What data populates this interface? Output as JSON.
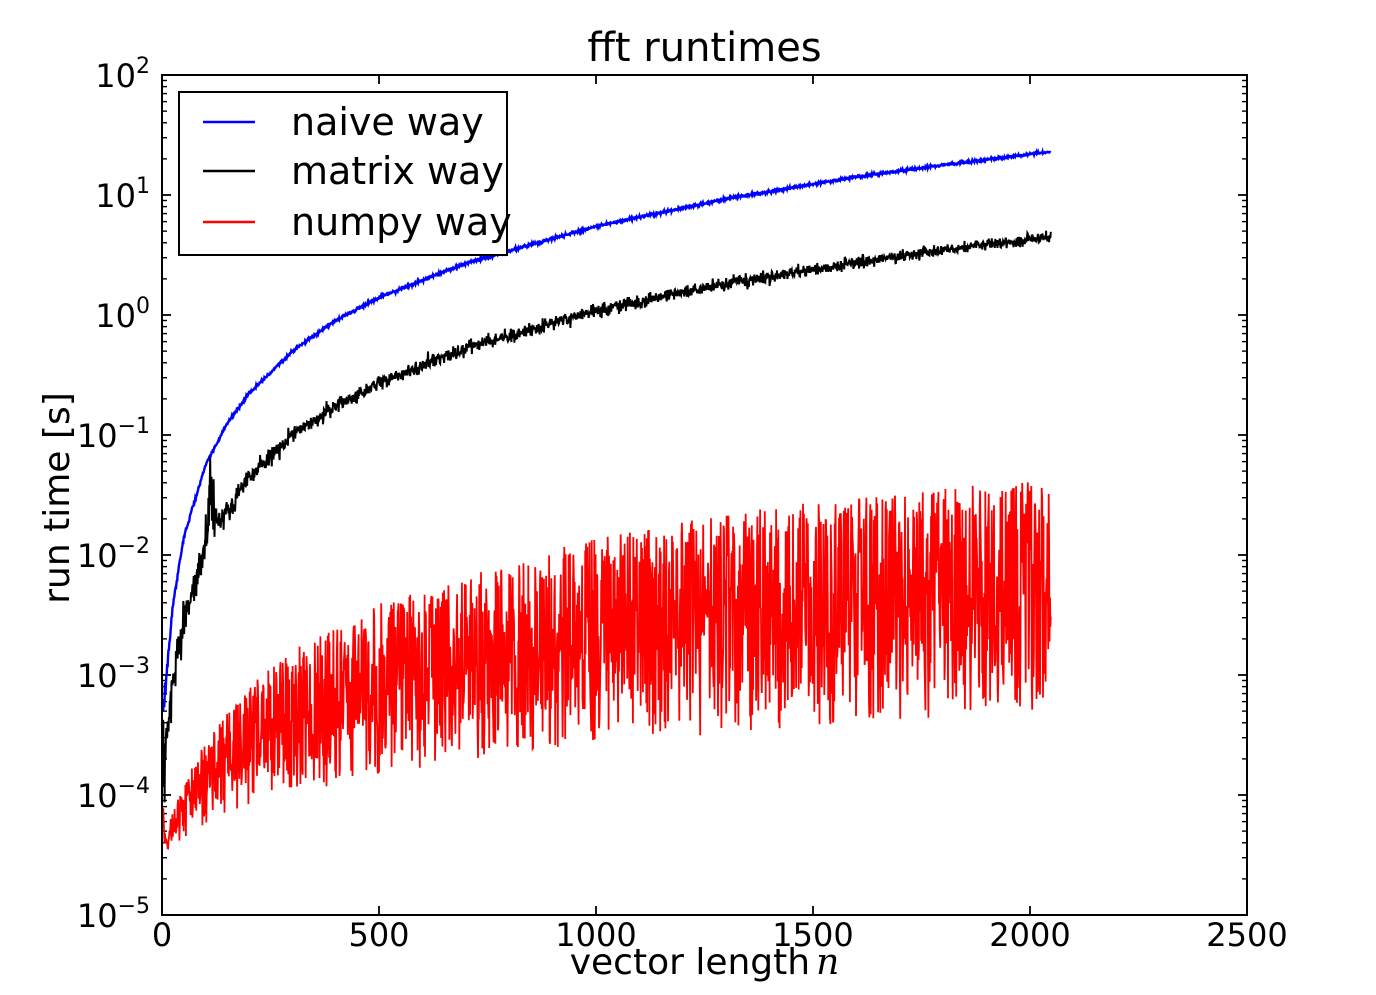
{
  "figure": {
    "title": "fft runtimes",
    "xlabel_prefix": "vector length",
    "xlabel_var": "n",
    "ylabel": "run time [s]"
  },
  "legend": {
    "position": "upper left",
    "entries": [
      {
        "label": "naive way",
        "color": "#0000ff"
      },
      {
        "label": "matrix way",
        "color": "#000000"
      },
      {
        "label": "numpy way",
        "color": "#ff0000"
      }
    ]
  },
  "chart_data": {
    "type": "line",
    "title": "fft runtimes",
    "xlabel": "vector length n",
    "ylabel": "run time [s]",
    "x_axis": {
      "scale": "linear",
      "min": 0,
      "max": 2500,
      "ticks": [
        0,
        500,
        1000,
        1500,
        2000,
        2500
      ]
    },
    "y_axis": {
      "scale": "log",
      "min_exp": -5,
      "max_exp": 2,
      "tick_exponents": [
        2,
        1,
        0,
        -1,
        -2,
        -3,
        -4,
        -5
      ],
      "minor_mantissas": [
        2,
        3,
        4,
        5,
        6,
        7,
        8,
        9
      ]
    },
    "grid": false,
    "n_start": 2,
    "n_end": 2048,
    "random_seed": 12,
    "series": [
      {
        "name": "naive way",
        "color": "#0000ff",
        "line_width": 2.4,
        "kind": "noisy_line",
        "anchors_n_seconds": [
          [
            2,
            0.00042
          ],
          [
            10,
            0.00095
          ],
          [
            25,
            0.0038
          ],
          [
            50,
            0.014
          ],
          [
            100,
            0.056
          ],
          [
            150,
            0.125
          ],
          [
            200,
            0.22
          ],
          [
            300,
            0.5
          ],
          [
            400,
            0.9
          ],
          [
            500,
            1.4
          ],
          [
            700,
            2.7
          ],
          [
            1000,
            5.5
          ],
          [
            1300,
            9.3
          ],
          [
            1600,
            14.2
          ],
          [
            1800,
            17.8
          ],
          [
            2048,
            23.0
          ]
        ],
        "noise_log10_by_n": [
          [
            2,
            0.05
          ],
          [
            20,
            0.012
          ],
          [
            100,
            0.006
          ],
          [
            2048,
            0.005
          ]
        ],
        "spike_regions": []
      },
      {
        "name": "matrix way",
        "color": "#000000",
        "line_width": 2.0,
        "kind": "noisy_line",
        "anchors_n_seconds": [
          [
            2,
            0.00023
          ],
          [
            6,
            0.00026
          ],
          [
            15,
            0.00045
          ],
          [
            25,
            0.0009
          ],
          [
            50,
            0.0029
          ],
          [
            100,
            0.011
          ],
          [
            150,
            0.024
          ],
          [
            200,
            0.044
          ],
          [
            300,
            0.1
          ],
          [
            400,
            0.175
          ],
          [
            500,
            0.27
          ],
          [
            700,
            0.53
          ],
          [
            1000,
            1.08
          ],
          [
            1200,
            1.56
          ],
          [
            1400,
            2.1
          ],
          [
            1600,
            2.75
          ],
          [
            1800,
            3.45
          ],
          [
            2048,
            4.5
          ]
        ],
        "noise_log10_by_n": [
          [
            2,
            0.2
          ],
          [
            15,
            0.1
          ],
          [
            120,
            0.05
          ],
          [
            300,
            0.03
          ],
          [
            2048,
            0.022
          ]
        ],
        "spike_regions": [
          {
            "from_n": 100,
            "to_n": 126,
            "amp_log10": 0.22
          }
        ]
      },
      {
        "name": "numpy way",
        "color": "#ff0000",
        "line_width": 1.8,
        "kind": "noise_band",
        "lower_envelope_n_seconds": [
          [
            2,
            3.3e-05
          ],
          [
            20,
            3.5e-05
          ],
          [
            50,
            4.2e-05
          ],
          [
            100,
            5.5e-05
          ],
          [
            200,
            8e-05
          ],
          [
            300,
            0.0001
          ],
          [
            500,
            0.00015
          ],
          [
            700,
            0.00019
          ],
          [
            1000,
            0.00026
          ],
          [
            1300,
            0.00033
          ],
          [
            1600,
            0.0004
          ],
          [
            2048,
            0.0005
          ]
        ],
        "upper_envelope_n_seconds": [
          [
            2,
            0.000105
          ],
          [
            10,
            5e-05
          ],
          [
            30,
            8e-05
          ],
          [
            50,
            0.00012
          ],
          [
            100,
            0.0003
          ],
          [
            200,
            0.0008
          ],
          [
            300,
            0.0016
          ],
          [
            500,
            0.004
          ],
          [
            700,
            0.007
          ],
          [
            1000,
            0.014
          ],
          [
            1300,
            0.022
          ],
          [
            1600,
            0.031
          ],
          [
            2048,
            0.043
          ]
        ],
        "band_weight_segments": [
          {
            "prob": 0.12,
            "from": 0.0,
            "to": 0.2
          },
          {
            "prob": 0.38,
            "from": 0.2,
            "to": 0.55
          },
          {
            "prob": 0.3,
            "from": 0.55,
            "to": 0.85
          },
          {
            "prob": 0.2,
            "from": 0.85,
            "to": 1.0
          }
        ]
      }
    ]
  }
}
